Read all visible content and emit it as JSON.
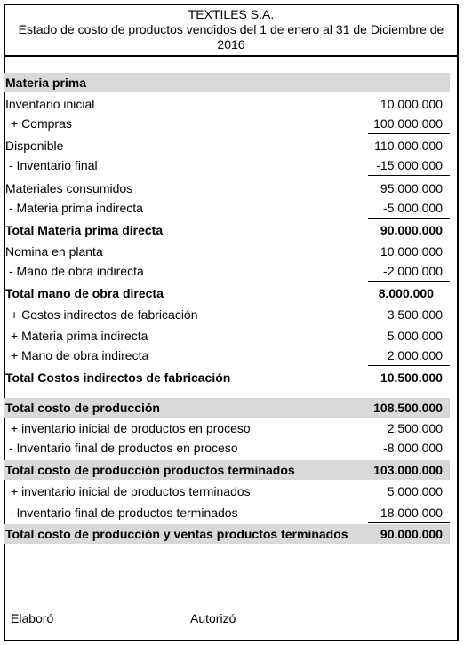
{
  "header": {
    "company": "TEXTILES S.A.",
    "subtitle": "Estado de costo de productos vendidos del 1 de enero al 31 de Diciembre de 2016"
  },
  "rows": [
    {
      "label": "Materia prima",
      "value": ""
    },
    {
      "label": "Inventario inicial",
      "value": "10.000.000"
    },
    {
      "label": "+ Compras",
      "value": "100.000.000"
    },
    {
      "label": "Disponible",
      "value": "110.000.000"
    },
    {
      "label": "- Inventario final",
      "value": "-15.000.000"
    },
    {
      "label": "Materiales consumidos",
      "value": "95.000.000"
    },
    {
      "label": "- Materia prima indirecta",
      "value": "-5.000.000"
    },
    {
      "label": "Total Materia prima directa",
      "value": "90.000.000"
    },
    {
      "label": "Nomina en planta",
      "value": "10.000.000"
    },
    {
      "label": "- Mano de obra indirecta",
      "value": "-2.000.000"
    },
    {
      "label": "Total mano de obra directa",
      "value": "8.000.000"
    },
    {
      "label": "+ Costos indirectos de fabricación",
      "value": "3.500.000"
    },
    {
      "label": "+ Materia prima indirecta",
      "value": "5.000.000"
    },
    {
      "label": "+ Mano de obra indirecta",
      "value": "2.000.000"
    },
    {
      "label": "Total Costos indirectos de fabricación",
      "value": "10.500.000"
    },
    {
      "label": "Total costo de producción",
      "value": "108.500.000"
    },
    {
      "label": "+ inventario inicial de productos en proceso",
      "value": "2.500.000"
    },
    {
      "label": "- Inventario final de productos en proceso",
      "value": "-8.000.000"
    },
    {
      "label": "Total costo de producción productos terminados",
      "value": "103.000.000"
    },
    {
      "label": "+ inventario inicial de productos terminados",
      "value": "5.000.000"
    },
    {
      "label": "- Inventario final de productos terminados",
      "value": "-18.000.000"
    },
    {
      "label": "Total costo de producción y ventas productos terminados",
      "value": "90.000.000"
    }
  ],
  "signatures": {
    "prepared": "Elaboró_________________",
    "authorized": "Autorizó____________________"
  }
}
